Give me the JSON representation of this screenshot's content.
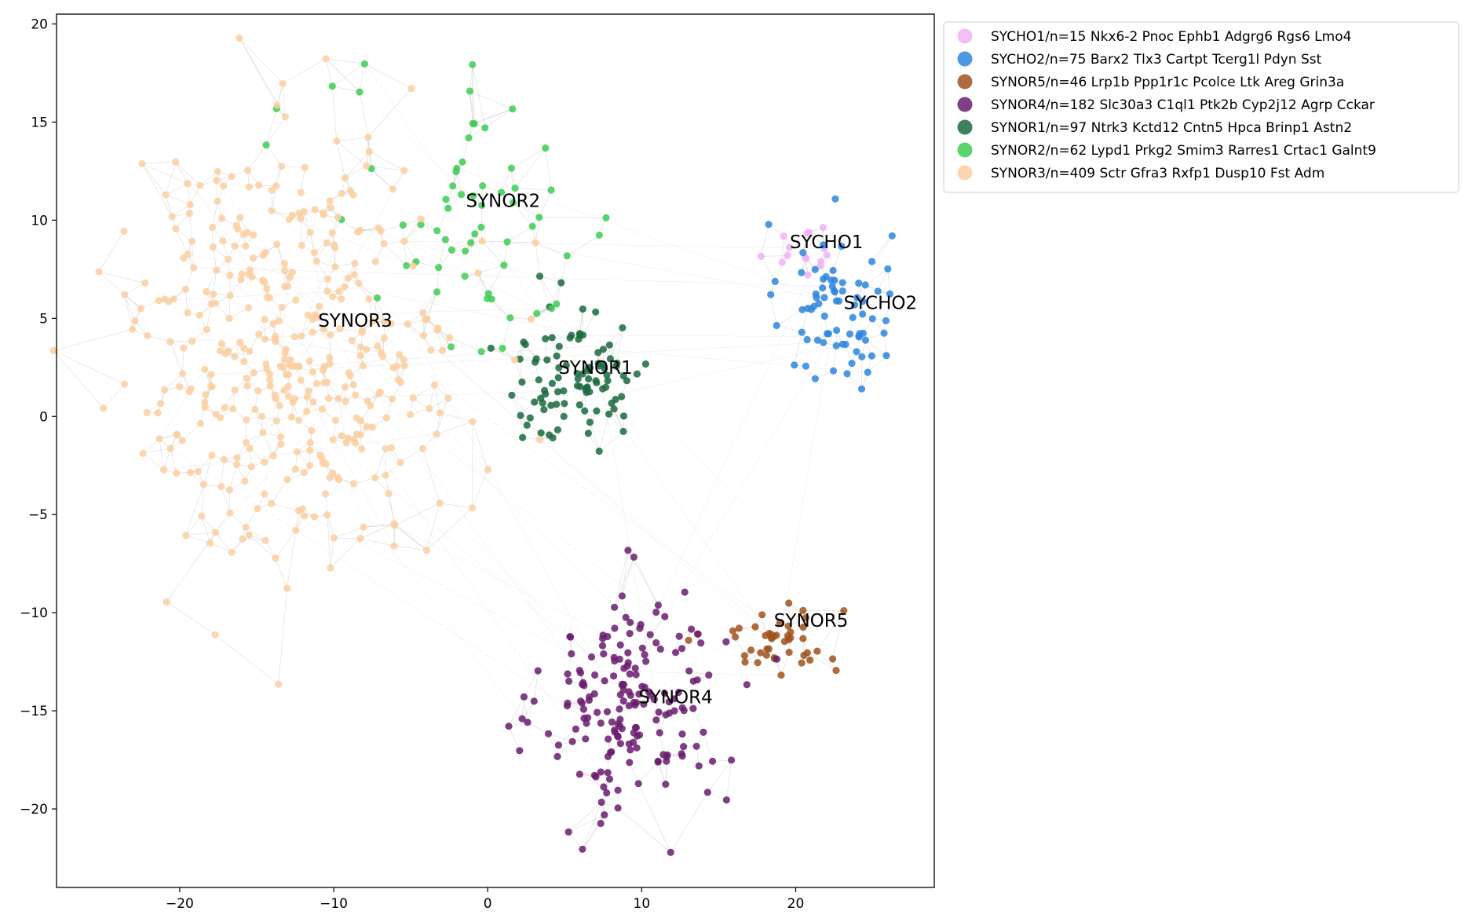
{
  "chart_data": {
    "type": "scatter",
    "title": "",
    "xlabel": "",
    "ylabel": "",
    "xlim": [
      -28,
      29
    ],
    "ylim": [
      -24,
      20.5
    ],
    "xticks": [
      -20,
      -10,
      0,
      10,
      20
    ],
    "yticks": [
      20,
      15,
      10,
      5,
      0,
      -5,
      -10,
      -15,
      -20
    ],
    "xtick_labels": [
      "−20",
      "−10",
      "0",
      "10",
      "20"
    ],
    "ytick_labels": [
      "20",
      "15",
      "10",
      "5",
      "0",
      "−5",
      "−10",
      "−15",
      "−20"
    ],
    "grid": false,
    "legend_position": "outside-top-right",
    "edge_color": "#9a9a9a",
    "series": [
      {
        "name": "SYCHO1/n=15 Nkx6-2 Pnoc Ephb1 Adgrg6 Rgs6 Lmo4",
        "label": "SYCHO1",
        "color": "#eeb3f5",
        "n": 15,
        "center": [
          20.3,
          8.6
        ],
        "spread": [
          1.6,
          0.8
        ],
        "label_pos": [
          22.0,
          8.9
        ]
      },
      {
        "name": "SYCHO2/n=75 Barx2 Tlx3 Cartpt Tcerg1l Pdyn Sst",
        "label": "SYCHO2",
        "color": "#2e86de",
        "n": 75,
        "center": [
          22.6,
          5.4
        ],
        "spread": [
          2.0,
          2.5
        ],
        "label_pos": [
          25.5,
          5.8
        ]
      },
      {
        "name": "SYNOR5/n=46 Lrp1b Ppp1r1c Pcolce Ltk Areg Grin3a",
        "label": "SYNOR5",
        "color": "#a0521d",
        "n": 46,
        "center": [
          18.5,
          -11.3
        ],
        "spread": [
          2.5,
          1.0
        ],
        "label_pos": [
          21.0,
          -10.4
        ]
      },
      {
        "name": "SYNOR4/n=182 Slc30a3 C1ql1 Ptk2b Cyp2j12 Agrp Cckar",
        "label": "SYNOR4",
        "color": "#6a1d6e",
        "n": 182,
        "center": [
          9.5,
          -14.6
        ],
        "spread": [
          3.2,
          3.2
        ],
        "label_pos": [
          12.2,
          -14.3
        ]
      },
      {
        "name": "SYNOR1/n=97 Ntrk3 Kctd12 Cntn5 Hpca Brinp1 Astn2",
        "label": "SYNOR1",
        "color": "#1b6b3f",
        "n": 97,
        "center": [
          5.9,
          2.1
        ],
        "spread": [
          2.6,
          2.0
        ],
        "label_pos": [
          7.0,
          2.5
        ]
      },
      {
        "name": "SYNOR2/n=62 Lypd1 Prkg2 Smim3 Rarres1 Crtac1 Galnt9",
        "label": "SYNOR2",
        "color": "#3fcc55",
        "n": 62,
        "center": [
          -1.0,
          10.0
        ],
        "spread": [
          5.5,
          4.0
        ],
        "label_pos": [
          1.0,
          11.0
        ]
      },
      {
        "name": "SYNOR3/n=409 Sctr Gfra3 Rxfp1 Dusp10 Fst Adm",
        "label": "SYNOR3",
        "color": "#fbcfa0",
        "n": 409,
        "center": [
          -12.5,
          3.5
        ],
        "spread": [
          6.0,
          5.8
        ],
        "label_pos": [
          -8.6,
          4.9
        ]
      }
    ]
  }
}
